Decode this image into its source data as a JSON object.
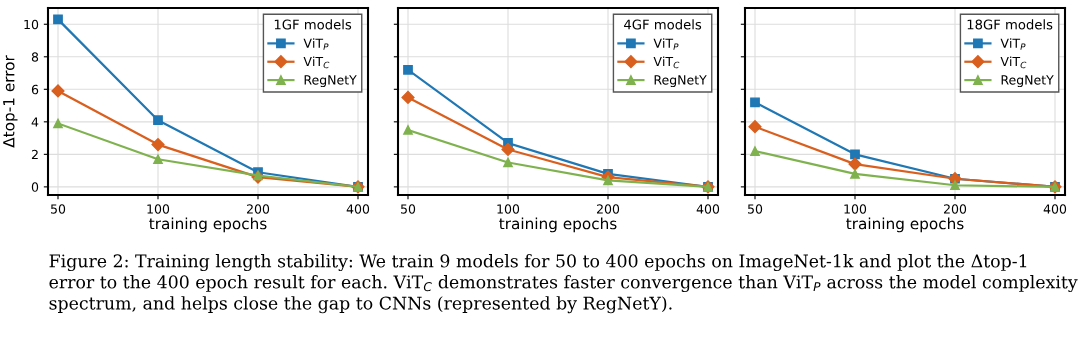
{
  "chart_data": [
    {
      "type": "line",
      "xlabel": "training epochs",
      "ylabel": "Δtop-1 error",
      "legend_title": "1GF models",
      "categories": [
        "50",
        "100",
        "200",
        "400"
      ],
      "ylim": [
        -0.5,
        11
      ],
      "yticks": [
        0,
        2,
        4,
        6,
        8,
        10
      ],
      "grid": true,
      "legend": "top right",
      "series": [
        {
          "name": "ViT$_{P}$",
          "color": "#1f77b4",
          "marker": "square",
          "values": [
            10.3,
            4.1,
            0.9,
            0
          ]
        },
        {
          "name": "ViT$_{C}$",
          "color": "#d95f1e",
          "marker": "diamond",
          "values": [
            5.9,
            2.6,
            0.6,
            0
          ]
        },
        {
          "name": "RegNetY",
          "color": "#7fb24e",
          "marker": "triangle",
          "values": [
            3.9,
            1.7,
            0.7,
            0
          ]
        }
      ],
      "annotations": [
        "Figure 2: Training length stability: We train 9 models for 50 to 400 epochs on ImageNet-1k and plot the Δtop-1 error to the 400 epoch result for each. ViT$_{C}$ demonstrates faster convergence than ViT$_{P}$ across the model complexity spectrum, and helps close the gap to CNNs (represented by RegNetY)."
      ]
    },
    {
      "type": "line",
      "xlabel": "training epochs",
      "legend_title": "4GF models",
      "categories": [
        "50",
        "100",
        "200",
        "400"
      ],
      "ylim": [
        -0.5,
        11
      ],
      "yticks": [
        0,
        2,
        4,
        6,
        8,
        10
      ],
      "grid": true,
      "legend": "top right",
      "tick_labels": "x",
      "series": [
        {
          "name": "ViT$_{P}$",
          "color": "#1f77b4",
          "marker": "square",
          "values": [
            7.2,
            2.7,
            0.8,
            0
          ]
        },
        {
          "name": "ViT$_{C}$",
          "color": "#d95f1e",
          "marker": "diamond",
          "values": [
            5.5,
            2.3,
            0.6,
            0
          ]
        },
        {
          "name": "RegNetY",
          "color": "#7fb24e",
          "marker": "triangle",
          "values": [
            3.5,
            1.5,
            0.4,
            0
          ]
        }
      ]
    },
    {
      "type": "line",
      "xlabel": "training epochs",
      "legend_title": "18GF models",
      "categories": [
        "50",
        "100",
        "200",
        "400"
      ],
      "ylim": [
        -0.5,
        11
      ],
      "yticks": [
        0,
        2,
        4,
        6,
        8,
        10
      ],
      "grid": true,
      "legend": "top right",
      "tick_labels": "x",
      "series": [
        {
          "name": "ViT$_{P}$",
          "color": "#1f77b4",
          "marker": "square",
          "values": [
            5.2,
            2.0,
            0.5,
            0
          ]
        },
        {
          "name": "ViT$_{C}$",
          "color": "#d95f1e",
          "marker": "diamond",
          "values": [
            3.7,
            1.4,
            0.5,
            0
          ]
        },
        {
          "name": "RegNetY",
          "color": "#7fb24e",
          "marker": "triangle",
          "values": [
            2.2,
            0.8,
            0.1,
            0
          ]
        }
      ]
    }
  ]
}
